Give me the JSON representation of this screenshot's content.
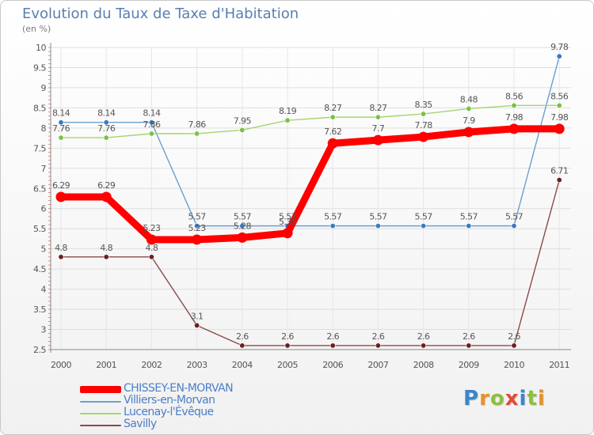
{
  "title": "Evolution du Taux de Taxe d'Habitation",
  "unit_label": "(en %)",
  "logo": {
    "text": "Proxiti",
    "letter_colors": [
      "#3a86c8",
      "#e8902a",
      "#8dbf3f",
      "#e14b3a",
      "#3a86c8",
      "#8dbf3f",
      "#e8902a"
    ]
  },
  "chart_data": {
    "type": "line",
    "title": "Evolution du Taux de Taxe d'Habitation",
    "ylabel": "(en %)",
    "xlabel": "",
    "x": [
      "2000",
      "2001",
      "2002",
      "2003",
      "2004",
      "2005",
      "2006",
      "2007",
      "2008",
      "2009",
      "2010",
      "2011"
    ],
    "ylim": [
      2.5,
      10
    ],
    "yticks": [
      "2.5",
      "3",
      "3.5",
      "4",
      "4.5",
      "5",
      "5.5",
      "6",
      "6.5",
      "7",
      "7.5",
      "8",
      "8.5",
      "9",
      "9.5",
      "10"
    ],
    "grid": true,
    "legend_position": "bottom-left",
    "series": [
      {
        "name": "Villiers-en-Morvan",
        "color": "#6b9fd0",
        "marker_color": "#3b79c2",
        "values": [
          8.14,
          8.14,
          8.14,
          5.57,
          5.57,
          5.57,
          5.57,
          5.57,
          5.57,
          5.57,
          5.57,
          9.78
        ],
        "labels": [
          "8.14",
          "8.14",
          "8.14",
          "5.57",
          "5.57",
          "5.57",
          "5.57",
          "5.57",
          "5.57",
          "5.57",
          "5.57",
          "9.78"
        ]
      },
      {
        "name": "Lucenay-l'Évêque",
        "color": "#a6d46e",
        "marker_color": "#7cc142",
        "values": [
          7.76,
          7.76,
          7.86,
          7.86,
          7.95,
          8.19,
          8.27,
          8.27,
          8.35,
          8.48,
          8.56,
          8.56
        ],
        "labels": [
          "7.76",
          "7.76",
          "7.86",
          "7.86",
          "7.95",
          "8.19",
          "8.27",
          "8.27",
          "8.35",
          "8.48",
          "8.56",
          "8.56"
        ]
      },
      {
        "name": "Savilly",
        "color": "#8a4a4a",
        "marker_color": "#6b1f1f",
        "values": [
          4.8,
          4.8,
          4.8,
          3.1,
          2.6,
          2.6,
          2.6,
          2.6,
          2.6,
          2.6,
          2.6,
          6.71
        ],
        "labels": [
          "4.8",
          "4.8",
          "4.8",
          "3.1",
          "2.6",
          "2.6",
          "2.6",
          "2.6",
          "2.6",
          "2.6",
          "2.6",
          "6.71"
        ]
      },
      {
        "name": "CHISSEY-EN-MORVAN",
        "color": "#ff0000",
        "marker_color": "#ff0000",
        "values": [
          6.29,
          6.29,
          5.23,
          5.23,
          5.28,
          5.39,
          7.62,
          7.7,
          7.78,
          7.9,
          7.98,
          7.98
        ],
        "labels": [
          "6.29",
          "6.29",
          "5.23",
          "5.23",
          "5.28",
          "5.39",
          "7.62",
          "7.7",
          "7.78",
          "7.9",
          "7.98",
          "7.98"
        ]
      }
    ],
    "legend": [
      "CHISSEY-EN-MORVAN",
      "Villiers-en-Morvan",
      "Lucenay-l'Évêque",
      "Savilly"
    ]
  }
}
